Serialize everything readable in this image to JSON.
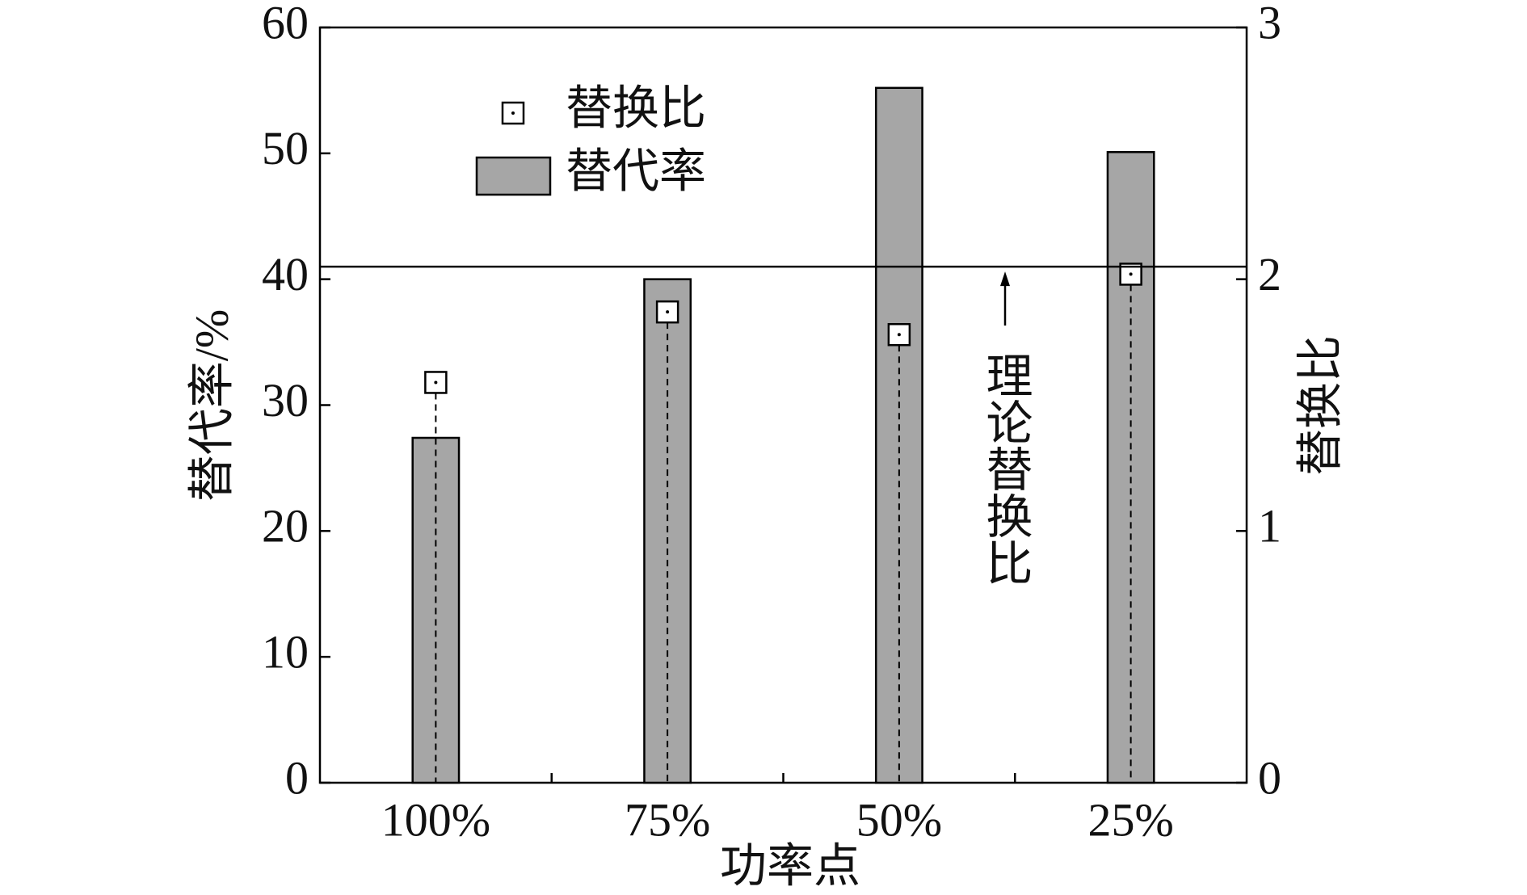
{
  "chart_data": {
    "type": "bar",
    "x_label": "功率点",
    "y_label": "替代率/%",
    "y2_label": "替换比",
    "categories": [
      "100%",
      "75%",
      "50%",
      "25%"
    ],
    "series": [
      {
        "name": "替代率",
        "type": "bar",
        "color": "#a6a6a6",
        "values": [
          27.4,
          40,
          55.2,
          50.1
        ]
      },
      {
        "name": "替换比",
        "type": "marker",
        "color": "#ffffff",
        "axis": "y2",
        "values": [
          1.59,
          1.87,
          1.78,
          2.02
        ]
      }
    ],
    "reference_line": {
      "value": 2.05,
      "axis": "y2",
      "label": "理论替换比"
    },
    "ylim": [
      0,
      60
    ],
    "yticks": [
      0,
      10,
      20,
      30,
      40,
      50,
      60
    ],
    "y2lim": [
      0,
      3
    ],
    "y2ticks": [
      0,
      1,
      2,
      3
    ],
    "legend": "upper left"
  }
}
